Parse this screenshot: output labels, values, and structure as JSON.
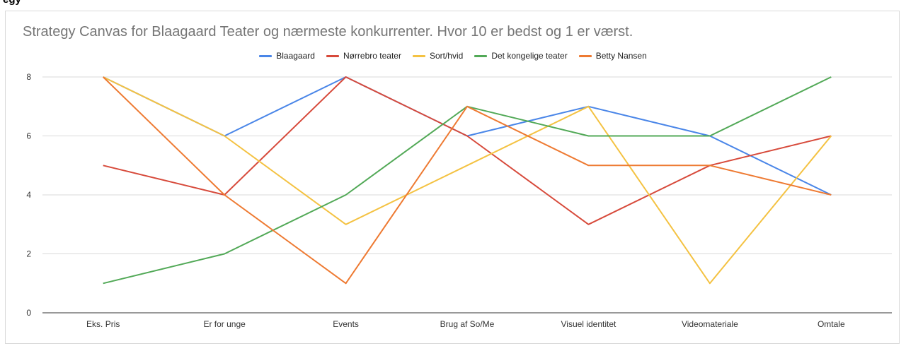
{
  "page_label": "egy",
  "colors": {
    "Blaagaard": "#4a86e8",
    "Nørrebro teater": "#d74a3b",
    "Sort/hvid": "#f4c242",
    "Det kongelige teater": "#52a957",
    "Betty Nansen": "#ee7a32"
  },
  "chart_data": {
    "type": "line",
    "title": "Strategy Canvas for Blaagaard Teater og nærmeste konkurrenter. Hvor 10 er bedst og 1 er værst.",
    "xlabel": "",
    "ylabel": "",
    "categories": [
      "Eks. Pris",
      "Er for unge",
      "Events",
      "Brug af So/Me",
      "Visuel identitet",
      "Videomateriale",
      "Omtale"
    ],
    "ylim": [
      0,
      8
    ],
    "yticks": [
      "0",
      "2",
      "4",
      "6",
      "8"
    ],
    "legend_position": "top-center",
    "grid": true,
    "series": [
      {
        "name": "Blaagaard",
        "values": [
          8,
          6,
          8,
          6,
          7,
          6,
          4
        ]
      },
      {
        "name": "Nørrebro teater",
        "values": [
          5,
          4,
          8,
          6,
          3,
          5,
          6
        ]
      },
      {
        "name": "Sort/hvid",
        "values": [
          8,
          6,
          3,
          5,
          7,
          1,
          6
        ]
      },
      {
        "name": "Det kongelige teater",
        "values": [
          1,
          2,
          4,
          7,
          6,
          6,
          8
        ]
      },
      {
        "name": "Betty Nansen",
        "values": [
          8,
          4,
          1,
          7,
          5,
          5,
          4
        ]
      }
    ]
  }
}
